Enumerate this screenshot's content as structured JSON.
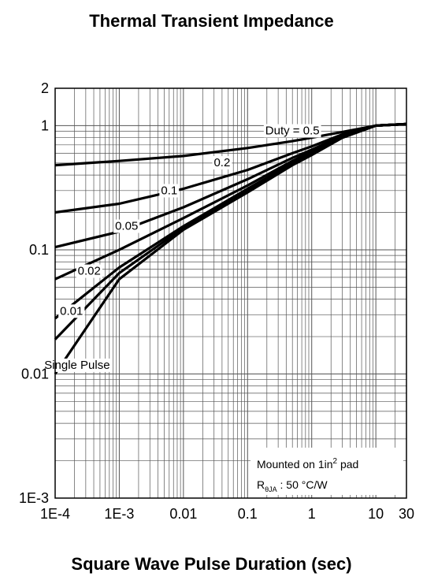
{
  "chart_data": {
    "type": "line",
    "title": "Thermal Transient Impedance",
    "xlabel": "Square Wave Pulse Duration (sec)",
    "ylabel": "",
    "xscale": "log",
    "yscale": "log",
    "xlim": [
      0.0001,
      30
    ],
    "ylim": [
      0.001,
      2
    ],
    "grid": true,
    "x_ticks": [
      {
        "value": 0.0001,
        "label": "1E-4"
      },
      {
        "value": 0.001,
        "label": "1E-3"
      },
      {
        "value": 0.01,
        "label": "0.01"
      },
      {
        "value": 0.1,
        "label": "0.1"
      },
      {
        "value": 1,
        "label": "1"
      },
      {
        "value": 10,
        "label": "10"
      },
      {
        "value": 30,
        "label": "30"
      }
    ],
    "y_ticks": [
      {
        "value": 0.001,
        "label": "1E-3"
      },
      {
        "value": 0.01,
        "label": "0.01"
      },
      {
        "value": 0.1,
        "label": "0.1"
      },
      {
        "value": 1,
        "label": "1"
      },
      {
        "value": 2,
        "label": "2"
      }
    ],
    "series": [
      {
        "name": "Duty = 0.5",
        "x": [
          0.0001,
          0.001,
          0.01,
          0.1,
          0.5,
          1,
          3,
          10,
          30
        ],
        "y": [
          0.48,
          0.52,
          0.57,
          0.66,
          0.75,
          0.8,
          0.89,
          1.0,
          1.03
        ],
        "label_at": [
          0.5,
          0.85
        ]
      },
      {
        "name": "0.2",
        "x": [
          0.0001,
          0.001,
          0.01,
          0.1,
          0.5,
          1,
          3,
          10,
          30
        ],
        "y": [
          0.2,
          0.235,
          0.31,
          0.44,
          0.6,
          0.68,
          0.85,
          1.0,
          1.03
        ],
        "label_at": [
          0.04,
          0.47
        ]
      },
      {
        "name": "0.1",
        "x": [
          0.0001,
          0.001,
          0.01,
          0.1,
          0.5,
          1,
          3,
          10,
          30
        ],
        "y": [
          0.105,
          0.14,
          0.22,
          0.37,
          0.55,
          0.64,
          0.83,
          1.0,
          1.03
        ],
        "label_at": [
          0.006,
          0.28
        ]
      },
      {
        "name": "0.05",
        "x": [
          0.0001,
          0.001,
          0.01,
          0.1,
          0.5,
          1,
          3,
          10,
          30
        ],
        "y": [
          0.058,
          0.1,
          0.18,
          0.33,
          0.52,
          0.62,
          0.82,
          1.0,
          1.03
        ],
        "label_at": [
          0.0013,
          0.145
        ]
      },
      {
        "name": "0.02",
        "x": [
          0.0001,
          0.001,
          0.01,
          0.1,
          0.5,
          1,
          3,
          10,
          30
        ],
        "y": [
          0.028,
          0.072,
          0.155,
          0.31,
          0.5,
          0.6,
          0.81,
          1.0,
          1.03
        ],
        "label_at": [
          0.00034,
          0.063
        ]
      },
      {
        "name": "0.01",
        "x": [
          0.0001,
          0.001,
          0.01,
          0.1,
          0.5,
          1,
          3,
          10,
          30
        ],
        "y": [
          0.019,
          0.065,
          0.15,
          0.3,
          0.49,
          0.59,
          0.8,
          1.0,
          1.03
        ],
        "label_at": [
          0.00018,
          0.03
        ]
      },
      {
        "name": "Single Pulse",
        "x": [
          0.0001,
          0.001,
          0.01,
          0.1,
          0.5,
          1,
          3,
          10,
          30
        ],
        "y": [
          0.01,
          0.058,
          0.145,
          0.29,
          0.48,
          0.58,
          0.8,
          1.0,
          1.03
        ],
        "label_at": [
          0.00022,
          0.011
        ]
      }
    ],
    "annotations": [
      "Mounted on 1in",
      "2",
      " pad",
      "R",
      "θJA",
      " : 50 ",
      "°C/W"
    ]
  }
}
